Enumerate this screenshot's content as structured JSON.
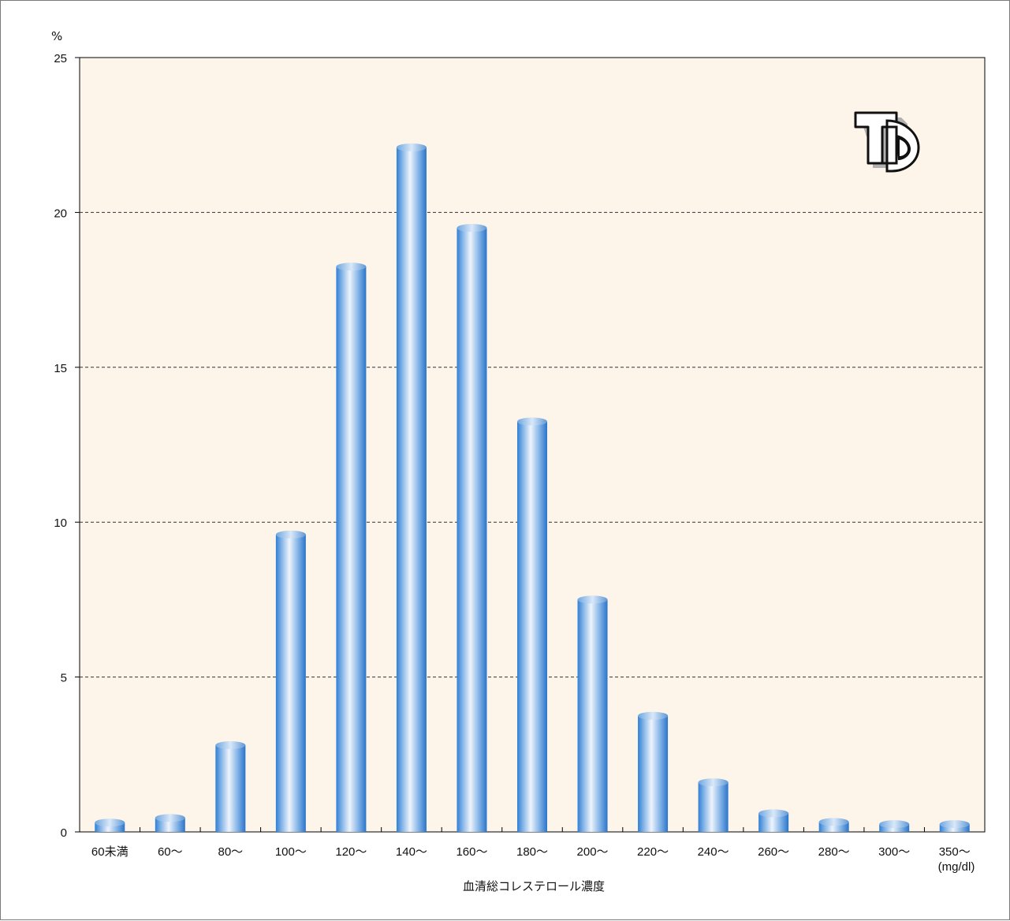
{
  "chart_data": {
    "type": "bar",
    "title": "",
    "ylabel": "%",
    "xlabel": "血清総コレステロール濃度",
    "x_unit": "(mg/dl)",
    "categories": [
      "60未満",
      "60～",
      "80～",
      "100～",
      "120～",
      "140～",
      "160～",
      "180～",
      "200～",
      "220～",
      "240～",
      "260～",
      "280～",
      "300～",
      "350～"
    ],
    "values": [
      0.3,
      0.45,
      2.8,
      9.6,
      18.25,
      22.1,
      19.5,
      13.25,
      7.5,
      3.75,
      1.6,
      0.6,
      0.32,
      0.25,
      0.25
    ],
    "ylim": [
      0,
      25
    ],
    "yticks": [
      0,
      5,
      10,
      15,
      20,
      25
    ],
    "grid": true,
    "legend": "none",
    "colors": {
      "plot_background": "#fdf5ea",
      "bar_light": "#e8f0fb",
      "bar_mid": "#7fb1e6",
      "bar_dark": "#2f7fd6",
      "grid": "#333333",
      "frame": "#7a7a7a"
    }
  }
}
